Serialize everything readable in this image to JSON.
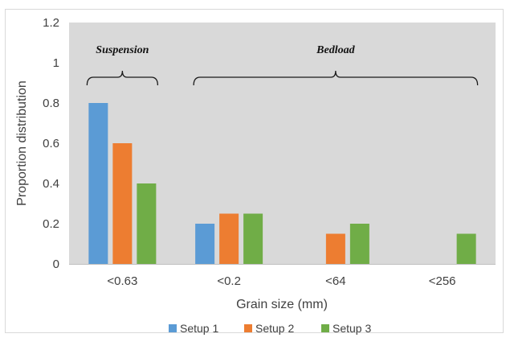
{
  "chart_data": {
    "type": "bar",
    "categories": [
      "<0.63",
      "<0.2",
      "<64",
      "<256"
    ],
    "series": [
      {
        "name": "Setup 1",
        "color": "#5b9bd5",
        "values": [
          0.8,
          0.2,
          0,
          0
        ]
      },
      {
        "name": "Setup 2",
        "color": "#ed7d31",
        "values": [
          0.6,
          0.25,
          0.15,
          0
        ]
      },
      {
        "name": "Setup 3",
        "color": "#70ad47",
        "values": [
          0.4,
          0.25,
          0.2,
          0.15
        ]
      }
    ],
    "xlabel": "Grain size (mm)",
    "ylabel": "Proportion distribution",
    "ylim": [
      0,
      1.2
    ],
    "yticks": [
      "0",
      "0.2",
      "0.4",
      "0.6",
      "0.8",
      "1",
      "1.2"
    ],
    "grid": false,
    "legend": "bottom",
    "plot_background": "#d9d9d9",
    "annotations": [
      {
        "label": "Suspension",
        "categories": [
          "<0.63"
        ]
      },
      {
        "label": "Bedload",
        "categories": [
          "<0.2",
          "<64",
          "<256"
        ]
      }
    ]
  }
}
